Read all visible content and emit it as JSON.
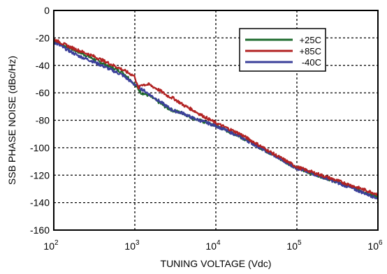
{
  "chart_data": {
    "type": "line",
    "title": "",
    "xlabel": "TUNING VOLTAGE (Vdc)",
    "ylabel": "SSB PHASE NOISE (dBc/Hz)",
    "x_scale": "log",
    "xlim": [
      100,
      1000000
    ],
    "ylim": [
      -160,
      0
    ],
    "x_ticks": [
      {
        "base": "10",
        "exp": "2",
        "value": 100
      },
      {
        "base": "10",
        "exp": "3",
        "value": 1000
      },
      {
        "base": "10",
        "exp": "4",
        "value": 10000
      },
      {
        "base": "10",
        "exp": "5",
        "value": 100000
      },
      {
        "base": "10",
        "exp": "6",
        "value": 1000000
      }
    ],
    "y_ticks": [
      "0",
      "-20",
      "-40",
      "-60",
      "-80",
      "-100",
      "-120",
      "-140",
      "-160"
    ],
    "grid": "dotted",
    "legend_position": "top-right",
    "series": [
      {
        "name": "+25C",
        "color": "#1e6b2e",
        "x": [
          100,
          150,
          200,
          300,
          500,
          700,
          800,
          1000,
          1200,
          1500,
          2000,
          2500,
          3000,
          4000,
          5000,
          7000,
          10000,
          20000,
          50000,
          100000,
          200000,
          500000,
          1000000
        ],
        "y": [
          -22,
          -27,
          -30,
          -35,
          -41,
          -45,
          -48,
          -54,
          -60,
          -62,
          -67,
          -71,
          -73,
          -75,
          -78,
          -81,
          -84,
          -92,
          -105,
          -115,
          -121,
          -129,
          -136
        ]
      },
      {
        "name": "+85C",
        "color": "#b22222",
        "x": [
          100,
          150,
          200,
          300,
          500,
          700,
          1000,
          1100,
          1200,
          1500,
          2000,
          2500,
          3000,
          4000,
          5000,
          7000,
          10000,
          20000,
          50000,
          100000,
          200000,
          500000,
          1000000
        ],
        "y": [
          -21,
          -26,
          -29,
          -33,
          -39,
          -43,
          -48,
          -57,
          -54,
          -54,
          -58,
          -62,
          -64,
          -69,
          -72,
          -77,
          -82,
          -90,
          -104,
          -114,
          -120,
          -128,
          -134
        ]
      },
      {
        "name": "-40C",
        "color": "#3b3f9a",
        "x": [
          100,
          150,
          200,
          300,
          500,
          700,
          1000,
          1200,
          1500,
          2000,
          2500,
          3000,
          4000,
          5000,
          7000,
          10000,
          20000,
          50000,
          100000,
          200000,
          500000,
          1000000
        ],
        "y": [
          -23,
          -29,
          -33,
          -37,
          -43,
          -47,
          -54,
          -57,
          -61,
          -66,
          -70,
          -73,
          -75,
          -78,
          -81,
          -84,
          -92,
          -105,
          -115,
          -121,
          -130,
          -137
        ]
      }
    ]
  }
}
